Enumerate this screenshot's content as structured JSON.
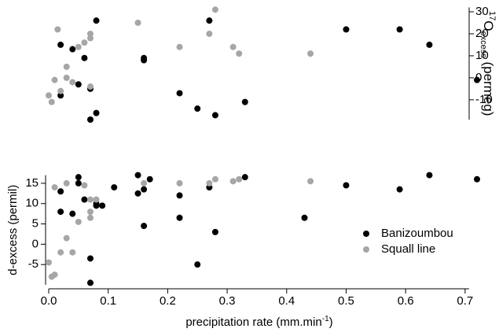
{
  "chart_data": [
    {
      "type": "scatter",
      "axis_side": "right",
      "ylabel_parts": [
        "17",
        "O",
        "excess",
        " (permeg)"
      ],
      "xlim": [
        0,
        0.72
      ],
      "ylim": [
        -19,
        32
      ],
      "yticks": [
        -10,
        0,
        10,
        20,
        30
      ],
      "series": [
        {
          "color": "#000000",
          "x": [
            0.02,
            0.04,
            0.05,
            0.06,
            0.07,
            0.08,
            0.07,
            0.08,
            0.02,
            0.16,
            0.16,
            0.22,
            0.25,
            0.27,
            0.28,
            0.33,
            0.5,
            0.59,
            0.64,
            0.72
          ],
          "values": [
            15,
            13,
            -3,
            9,
            -5,
            26,
            -19,
            -16,
            -8,
            9,
            8,
            -7,
            -14,
            26,
            -17,
            -11,
            22,
            22,
            15,
            -1
          ]
        },
        {
          "color": "#a6a6a6",
          "x": [
            0.015,
            0.0,
            0.005,
            0.01,
            0.02,
            0.03,
            0.03,
            0.04,
            0.05,
            0.06,
            0.07,
            0.07,
            0.07,
            0.15,
            0.22,
            0.27,
            0.28,
            0.31,
            0.32,
            0.44
          ],
          "values": [
            22,
            -8,
            -11,
            -1,
            -6,
            5,
            0,
            -2,
            14,
            16,
            18,
            20,
            -4,
            25,
            14,
            20,
            31,
            14,
            11,
            11
          ]
        }
      ]
    },
    {
      "type": "scatter",
      "axis_side": "left",
      "ylabel": "d-excess (permil)",
      "xlabel_parts": [
        "precipitation rate (mm.min",
        "-1",
        ")"
      ],
      "xlim": [
        0,
        0.72
      ],
      "xticks": [
        {
          "value": 0,
          "label": "0.0"
        },
        0.1,
        0.2,
        0.3,
        0.4,
        0.5,
        0.6,
        0.7
      ],
      "ylim": [
        -10,
        17
      ],
      "yticks": [
        -5,
        0,
        5,
        10,
        15
      ],
      "series": [
        {
          "name": "Banizoumbou",
          "color": "#000000",
          "x": [
            0.02,
            0.02,
            0.04,
            0.05,
            0.05,
            0.06,
            0.07,
            0.07,
            0.08,
            0.08,
            0.09,
            0.11,
            0.15,
            0.15,
            0.16,
            0.17,
            0.16,
            0.22,
            0.22,
            0.25,
            0.27,
            0.28,
            0.33,
            0.43,
            0.5,
            0.59,
            0.64,
            0.72
          ],
          "values": [
            13,
            8,
            7.5,
            16.5,
            15,
            11,
            -3.5,
            -9.5,
            10,
            9.5,
            9.5,
            14,
            17,
            12.5,
            13.5,
            16,
            4.5,
            12,
            6.5,
            -5,
            14,
            3,
            16.5,
            6.5,
            14.5,
            13.5,
            17,
            16
          ]
        },
        {
          "name": "Squall line",
          "color": "#a6a6a6",
          "x": [
            0.0,
            0.005,
            0.01,
            0.01,
            0.02,
            0.03,
            0.03,
            0.04,
            0.05,
            0.06,
            0.07,
            0.07,
            0.07,
            0.08,
            0.16,
            0.22,
            0.27,
            0.28,
            0.31,
            0.32,
            0.44
          ],
          "values": [
            -4.5,
            -8,
            -7.5,
            14,
            -2,
            15,
            1.5,
            -2,
            5.5,
            14.5,
            11,
            8,
            6.5,
            11,
            15,
            15,
            15,
            16,
            15.5,
            16,
            15.5
          ]
        }
      ]
    }
  ]
}
